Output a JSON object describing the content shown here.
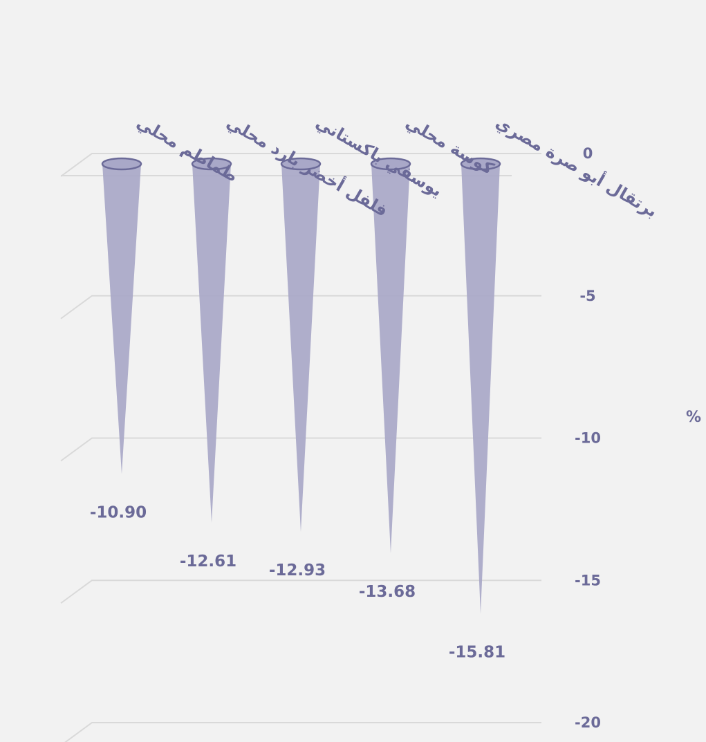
{
  "chart_data": {
    "type": "bar",
    "categories": [
      "طماطم محلي",
      "فلفل أخضر بارد محلي",
      "يوسفي باكستاني",
      "كوسة محلي",
      "برتقال أبو صرة مصري"
    ],
    "values": [
      -10.9,
      -12.61,
      -12.93,
      -13.68,
      -15.81
    ],
    "data_labels": [
      "-10.90",
      "-12.61",
      "-12.93",
      "-13.68",
      "-15.81"
    ],
    "y_ticks": [
      0,
      -5,
      -10,
      -15,
      -20
    ],
    "ylim": [
      -20,
      0
    ],
    "ylabel": "%",
    "grid": true,
    "color": "#a9a8c8",
    "text_color": "#6b6a98"
  }
}
